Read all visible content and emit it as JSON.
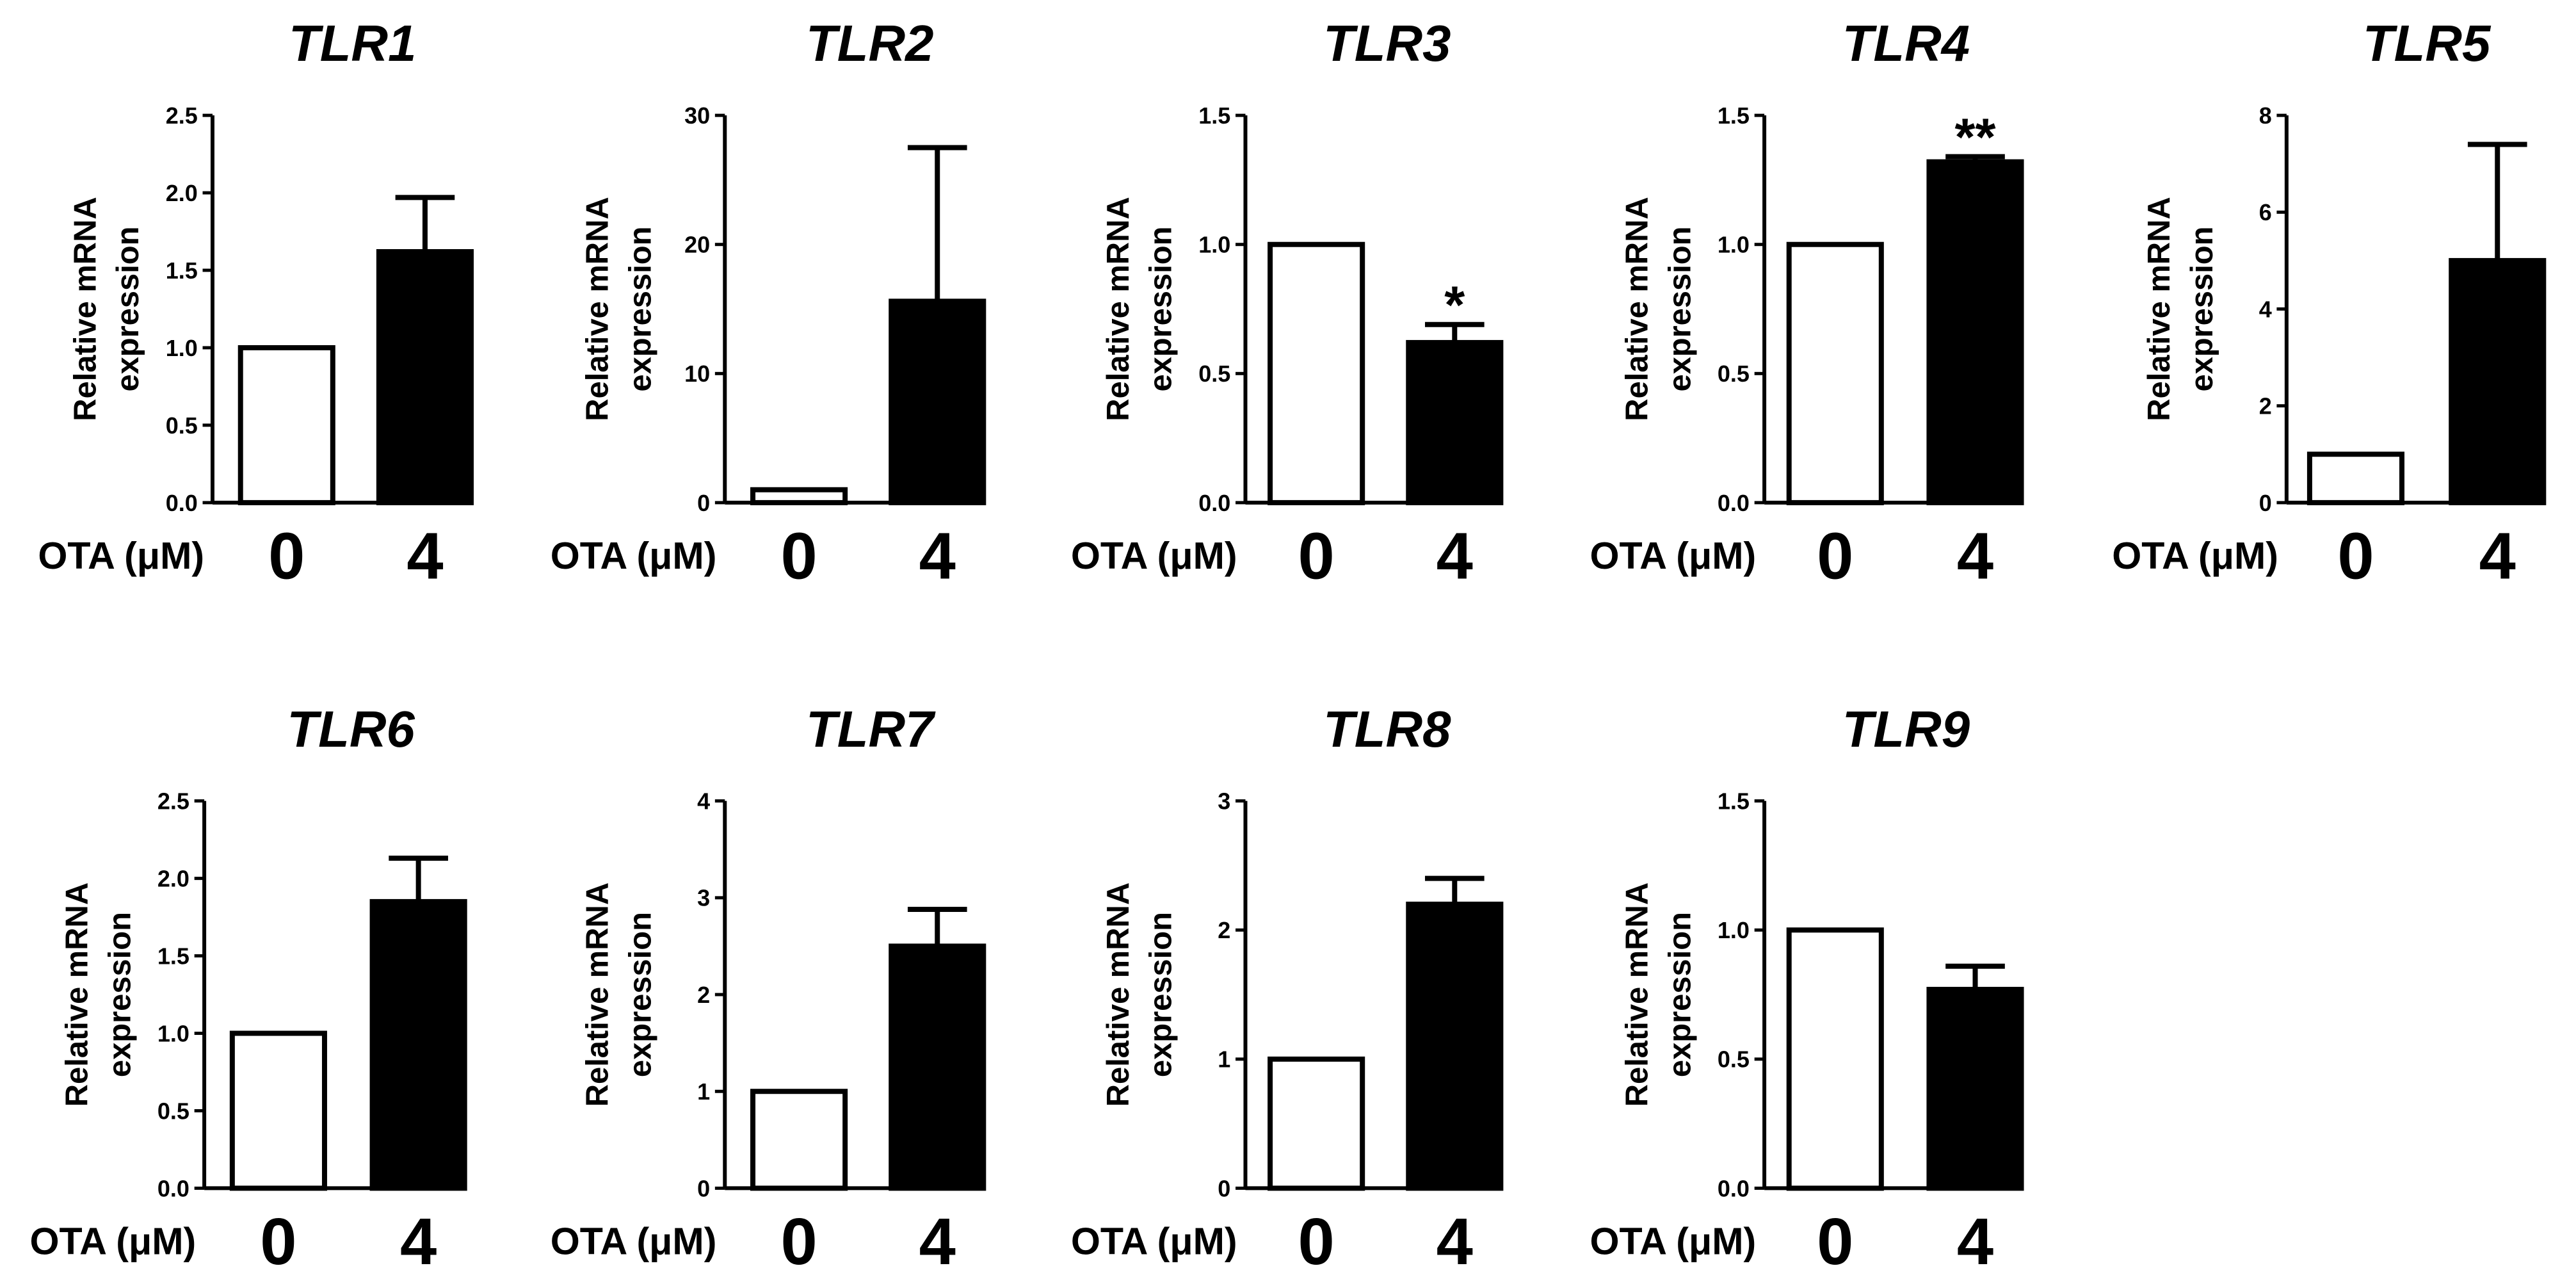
{
  "chart_data": [
    {
      "type": "bar",
      "title": "TLR1",
      "ylabel_line1": "Relative mRNA",
      "ylabel_line2": "expression",
      "xlabel": "OTA (μM)",
      "categories": [
        "0",
        "4"
      ],
      "values": [
        1.0,
        1.62
      ],
      "errors": [
        0,
        0.35
      ],
      "significance": [
        "",
        ""
      ],
      "ylim": [
        0,
        2.5
      ],
      "ticks": [
        0.0,
        0.5,
        1.0,
        1.5,
        2.0,
        2.5
      ],
      "tick_labels": [
        "0.0",
        "0.5",
        "1.0",
        "1.5",
        "2.0",
        "2.5"
      ],
      "fills": [
        "#ffffff",
        "#000000"
      ]
    },
    {
      "type": "bar",
      "title": "TLR2",
      "ylabel_line1": "Relative mRNA",
      "ylabel_line2": "expression",
      "xlabel": "OTA (μM)",
      "categories": [
        "0",
        "4"
      ],
      "values": [
        1.0,
        15.6
      ],
      "errors": [
        0,
        11.9
      ],
      "significance": [
        "",
        ""
      ],
      "ylim": [
        0,
        30
      ],
      "ticks": [
        0,
        10,
        20,
        30
      ],
      "tick_labels": [
        "0",
        "10",
        "20",
        "30"
      ],
      "fills": [
        "#ffffff",
        "#000000"
      ]
    },
    {
      "type": "bar",
      "title": "TLR3",
      "ylabel_line1": "Relative mRNA",
      "ylabel_line2": "expression",
      "xlabel": "OTA (μM)",
      "categories": [
        "0",
        "4"
      ],
      "values": [
        1.0,
        0.62
      ],
      "errors": [
        0,
        0.07
      ],
      "significance": [
        "",
        "*"
      ],
      "ylim": [
        0,
        1.5
      ],
      "ticks": [
        0.0,
        0.5,
        1.0,
        1.5
      ],
      "tick_labels": [
        "0.0",
        "0.5",
        "1.0",
        "1.5"
      ],
      "fills": [
        "#ffffff",
        "#000000"
      ]
    },
    {
      "type": "bar",
      "title": "TLR4",
      "ylabel_line1": "Relative mRNA",
      "ylabel_line2": "expression",
      "xlabel": "OTA (μM)",
      "categories": [
        "0",
        "4"
      ],
      "values": [
        1.0,
        1.32
      ],
      "errors": [
        0,
        0.02
      ],
      "significance": [
        "",
        "**"
      ],
      "ylim": [
        0,
        1.5
      ],
      "ticks": [
        0.0,
        0.5,
        1.0,
        1.5
      ],
      "tick_labels": [
        "0.0",
        "0.5",
        "1.0",
        "1.5"
      ],
      "fills": [
        "#ffffff",
        "#000000"
      ]
    },
    {
      "type": "bar",
      "title": "TLR5",
      "ylabel_line1": "Relative mRNA",
      "ylabel_line2": "expression",
      "xlabel": "OTA (μM)",
      "categories": [
        "0",
        "4"
      ],
      "values": [
        1.0,
        5.0
      ],
      "errors": [
        0,
        2.4
      ],
      "significance": [
        "",
        ""
      ],
      "ylim": [
        0,
        8
      ],
      "ticks": [
        0,
        2,
        4,
        6,
        8
      ],
      "tick_labels": [
        "0",
        "2",
        "4",
        "6",
        "8"
      ],
      "fills": [
        "#ffffff",
        "#000000"
      ]
    },
    {
      "type": "bar",
      "title": "TLR6",
      "ylabel_line1": "Relative mRNA",
      "ylabel_line2": "expression",
      "xlabel": "OTA (μM)",
      "categories": [
        "0",
        "4"
      ],
      "values": [
        1.0,
        1.85
      ],
      "errors": [
        0,
        0.28
      ],
      "significance": [
        "",
        ""
      ],
      "ylim": [
        0,
        2.5
      ],
      "ticks": [
        0.0,
        0.5,
        1.0,
        1.5,
        2.0,
        2.5
      ],
      "tick_labels": [
        "0.0",
        "0.5",
        "1.0",
        "1.5",
        "2.0",
        "2.5"
      ],
      "fills": [
        "#ffffff",
        "#000000"
      ]
    },
    {
      "type": "bar",
      "title": "TLR7",
      "ylabel_line1": "Relative mRNA",
      "ylabel_line2": "expression",
      "xlabel": "OTA (μM)",
      "categories": [
        "0",
        "4"
      ],
      "values": [
        1.0,
        2.5
      ],
      "errors": [
        0,
        0.38
      ],
      "significance": [
        "",
        ""
      ],
      "ylim": [
        0,
        4
      ],
      "ticks": [
        0,
        1,
        2,
        3,
        4
      ],
      "tick_labels": [
        "0",
        "1",
        "2",
        "3",
        "4"
      ],
      "fills": [
        "#ffffff",
        "#000000"
      ]
    },
    {
      "type": "bar",
      "title": "TLR8",
      "ylabel_line1": "Relative mRNA",
      "ylabel_line2": "expression",
      "xlabel": "OTA (μM)",
      "categories": [
        "0",
        "4"
      ],
      "values": [
        1.0,
        2.2
      ],
      "errors": [
        0,
        0.2
      ],
      "significance": [
        "",
        ""
      ],
      "ylim": [
        0,
        3
      ],
      "ticks": [
        0,
        1,
        2,
        3
      ],
      "tick_labels": [
        "0",
        "1",
        "2",
        "3"
      ],
      "fills": [
        "#ffffff",
        "#000000"
      ]
    },
    {
      "type": "bar",
      "title": "TLR9",
      "ylabel_line1": "Relative mRNA",
      "ylabel_line2": "expression",
      "xlabel": "OTA (μM)",
      "categories": [
        "0",
        "4"
      ],
      "values": [
        1.0,
        0.77
      ],
      "errors": [
        0,
        0.09
      ],
      "significance": [
        "",
        ""
      ],
      "ylim": [
        0,
        1.5
      ],
      "ticks": [
        0.0,
        0.5,
        1.0,
        1.5
      ],
      "tick_labels": [
        "0.0",
        "0.5",
        "1.0",
        "1.5"
      ],
      "fills": [
        "#ffffff",
        "#000000"
      ]
    }
  ]
}
